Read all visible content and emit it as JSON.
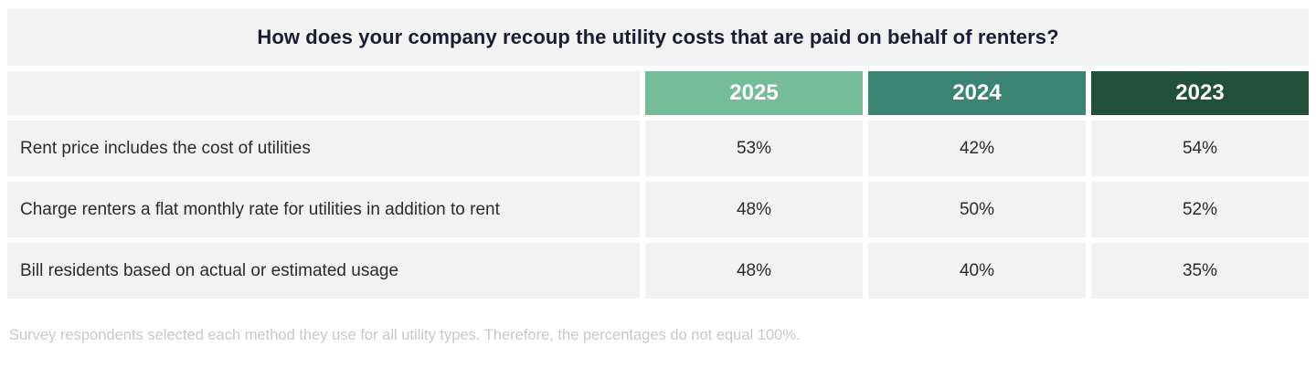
{
  "title": "How does your company recoup the utility costs that are paid on behalf of renters?",
  "footnote": "Survey respondents selected each method they use for all utility types. Therefore, the percentages do not equal 100%.",
  "colors": {
    "header_2025": "#74bd98",
    "header_2024": "#3b8471",
    "header_2023": "#22503b",
    "cell_background": "#f2f2f3",
    "title_text": "#1a1d33",
    "body_text": "#2b2b30",
    "footnote_text": "#c9c9cb",
    "header_text": "#ffffff"
  },
  "chart_data": {
    "type": "table",
    "title": "How does your company recoup the utility costs that are paid on behalf of renters?",
    "columns": [
      "2025",
      "2024",
      "2023"
    ],
    "rows": [
      {
        "label": "Rent price includes the cost of utilities",
        "values": [
          "53%",
          "42%",
          "54%"
        ]
      },
      {
        "label": "Charge renters a flat monthly rate for utilities in addition to rent",
        "values": [
          "48%",
          "50%",
          "52%"
        ]
      },
      {
        "label": "Bill residents based on actual or estimated usage",
        "values": [
          "48%",
          "40%",
          "35%"
        ]
      }
    ],
    "footnote": "Survey respondents selected each method they use for all utility types. Therefore, the percentages do not equal 100%."
  }
}
